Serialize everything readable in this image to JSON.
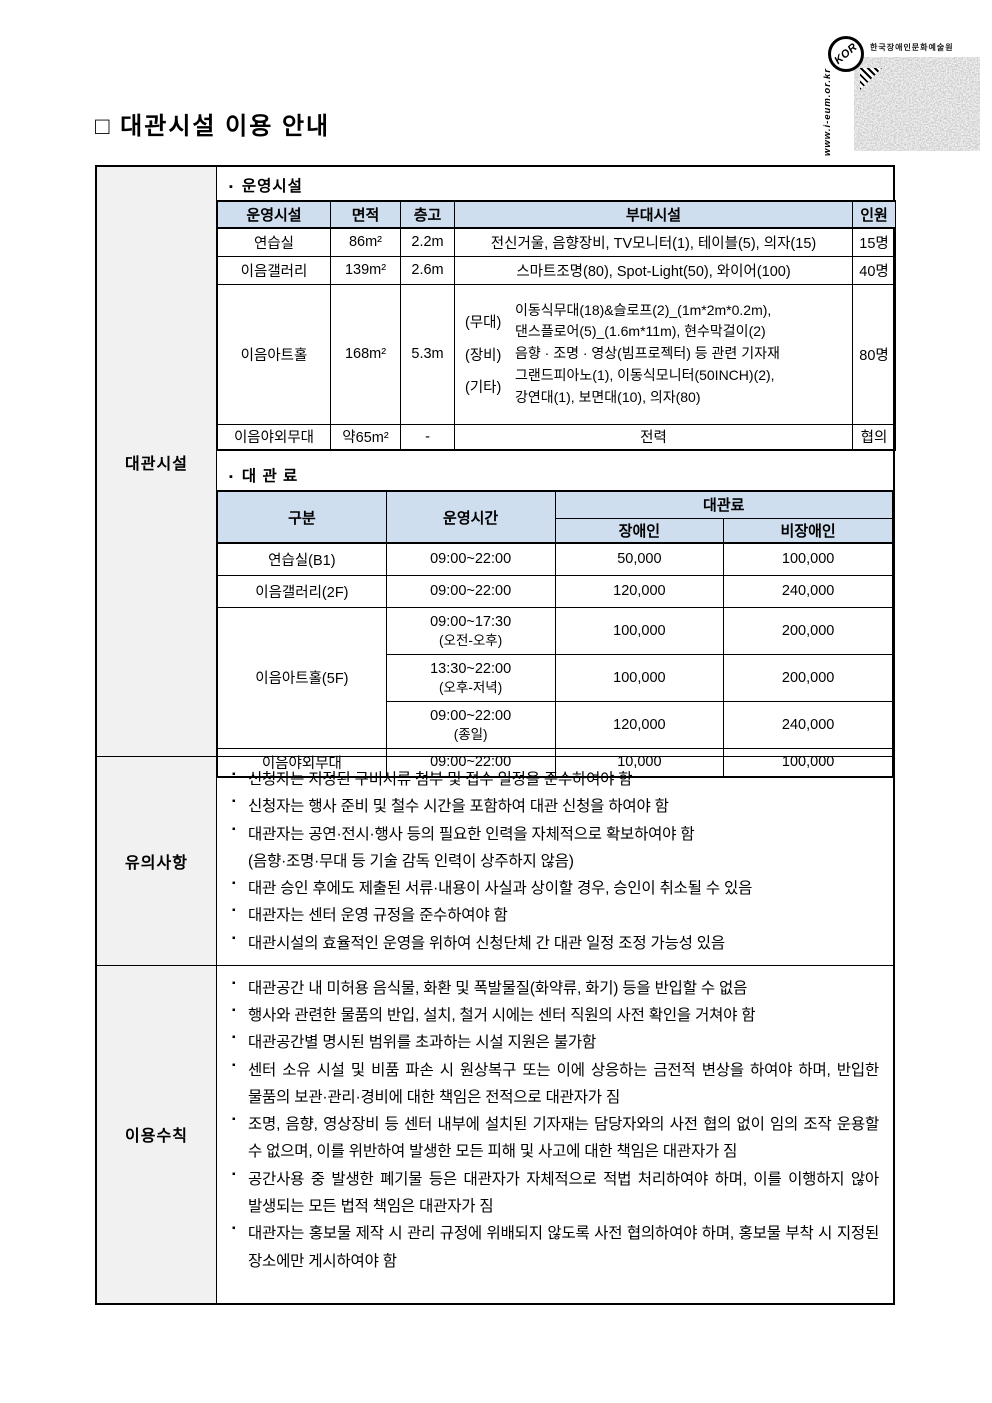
{
  "page": {
    "title": "□ 대관시설 이용 안내"
  },
  "logo": {
    "org_name": "한국장애인문화예술원",
    "badge": "KOR",
    "url": "www.i-eum.or.kr"
  },
  "colors": {
    "header_bg": "#cfdeef",
    "label_bg": "#f1f1f1"
  },
  "facility": {
    "label": "대관시설",
    "operating_title": "운영시설",
    "operating_table": {
      "headers": [
        "운영시설",
        "면적",
        "층고",
        "부대시설",
        "인원"
      ],
      "rows": [
        {
          "name": "연습실",
          "area": "86m²",
          "height": "2.2m",
          "capacity": "15명",
          "facilities": [
            {
              "label": "",
              "lines": [
                "전신거울, 음향장비, TV모니터(1), 테이블(5), 의자(15)"
              ]
            }
          ]
        },
        {
          "name": "이음갤러리",
          "area": "139m²",
          "height": "2.6m",
          "capacity": "40명",
          "facilities": [
            {
              "label": "",
              "lines": [
                "스마트조명(80), Spot-Light(50), 와이어(100)"
              ]
            }
          ]
        },
        {
          "name": "이음아트홀",
          "area": "168m²",
          "height": "5.3m",
          "capacity": "80명",
          "facilities": [
            {
              "label": "(무대)",
              "lines": [
                "이동식무대(18)&슬로프(2)_(1m*2m*0.2m),",
                "댄스플로어(5)_(1.6m*11m), 현수막걸이(2)"
              ]
            },
            {
              "label": "(장비)",
              "lines": [
                "음향 · 조명 · 영상(빔프로젝터) 등 관련 기자재"
              ]
            },
            {
              "label": "(기타)",
              "lines": [
                "그랜드피아노(1), 이동식모니터(50INCH)(2),",
                "강연대(1), 보면대(10), 의자(80)"
              ]
            }
          ]
        },
        {
          "name": "이음야외무대",
          "area": "약65m²",
          "height": "-",
          "capacity": "협의",
          "facilities": [
            {
              "label": "",
              "lines": [
                "전력"
              ]
            }
          ]
        }
      ]
    },
    "fee_title": "대 관 료",
    "fee_table": {
      "col_category": "구분",
      "col_time": "운영시간",
      "fee_group": "대관료",
      "fee_cols": [
        "장애인",
        "비장애인"
      ],
      "groups": [
        {
          "name": "연습실(B1)",
          "slots": [
            {
              "time": "09:00~22:00",
              "sub": "",
              "disabled": "50,000",
              "general": "100,000"
            }
          ]
        },
        {
          "name": "이음갤러리(2F)",
          "slots": [
            {
              "time": "09:00~22:00",
              "sub": "",
              "disabled": "120,000",
              "general": "240,000"
            }
          ]
        },
        {
          "name": "이음아트홀(5F)",
          "slots": [
            {
              "time": "09:00~17:30",
              "sub": "(오전-오후)",
              "disabled": "100,000",
              "general": "200,000"
            },
            {
              "time": "13:30~22:00",
              "sub": "(오후-저녁)",
              "disabled": "100,000",
              "general": "200,000"
            },
            {
              "time": "09:00~22:00",
              "sub": "(종일)",
              "disabled": "120,000",
              "general": "240,000"
            }
          ]
        },
        {
          "name": "이음야외무대",
          "slots": [
            {
              "time": "09:00~22:00",
              "sub": "",
              "disabled": "10,000",
              "general": "100,000"
            }
          ]
        }
      ]
    }
  },
  "notes": {
    "label": "유의사항",
    "items": [
      {
        "text": "신청자는 지정된 구비서류 첨부 및 접수 일정을 준수하여야 함"
      },
      {
        "text": "신청자는 행사 준비 및 철수 시간을 포함하여 대관 신청을 하여야 함"
      },
      {
        "text": "대관자는 공연·전시·행사 등의 필요한 인력을 자체적으로 확보하여야 함",
        "cont": "(음향·조명·무대 등 기술 감독 인력이 상주하지 않음)"
      },
      {
        "text": "대관 승인 후에도 제출된 서류·내용이 사실과 상이할 경우, 승인이 취소될 수 있음"
      },
      {
        "text": "대관자는 센터 운영 규정을 준수하여야 함"
      },
      {
        "text": "대관시설의 효율적인 운영을 위하여 신청단체 간 대관 일정 조정 가능성 있음"
      }
    ]
  },
  "rules": {
    "label": "이용수칙",
    "items": [
      {
        "text": "대관공간 내 미허용 음식물, 화환 및 폭발물질(화약류, 화기) 등을 반입할 수 없음"
      },
      {
        "text": "행사와 관련한 물품의 반입, 설치, 철거 시에는 센터 직원의 사전 확인을 거쳐야 함"
      },
      {
        "text": "대관공간별 명시된 범위를 초과하는 시설 지원은 불가함"
      },
      {
        "text": "센터 소유 시설 및 비품 파손 시 원상복구 또는 이에 상응하는 금전적 변상을 하여야 하며, 반입한 물품의 보관·관리·경비에 대한 책임은 전적으로 대관자가 짐"
      },
      {
        "text": "조명, 음향, 영상장비 등 센터 내부에 설치된 기자재는 담당자와의 사전 협의 없이 임의 조작 운용할 수 없으며, 이를 위반하여 발생한 모든 피해 및 사고에 대한 책임은 대관자가 짐"
      },
      {
        "text": "공간사용 중 발생한 폐기물 등은 대관자가 자체적으로 적법 처리하여야 하며, 이를 이행하지 않아 발생되는 모든 법적 책임은 대관자가 짐"
      },
      {
        "text": "대관자는 홍보물 제작 시 관리 규정에 위배되지 않도록 사전 협의하여야 하며, 홍보물 부착 시 지정된 장소에만 게시하여야 함"
      }
    ]
  }
}
